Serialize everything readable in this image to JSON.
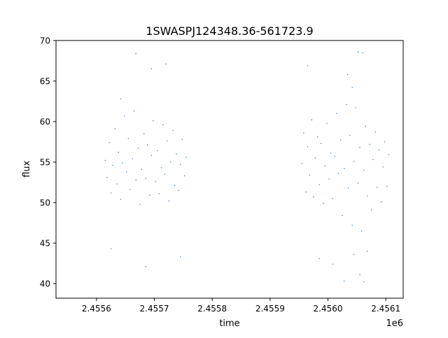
{
  "chart_data": {
    "type": "scatter",
    "title": "1SWASPJ124348.36-561723.9",
    "xlabel": "time",
    "ylabel": "flux",
    "x_offset_label": "1e6",
    "xlim": [
      2.45553,
      2.45613
    ],
    "ylim": [
      38.2,
      70
    ],
    "x_ticks": [
      2.4556,
      2.4557,
      2.4558,
      2.4559,
      2.456,
      2.4561
    ],
    "x_tick_labels": [
      "2.4556",
      "2.4557",
      "2.4558",
      "2.4559",
      "2.4560",
      "2.4561"
    ],
    "y_ticks": [
      40,
      45,
      50,
      55,
      60,
      65,
      70
    ],
    "y_tick_labels": [
      "40",
      "45",
      "50",
      "55",
      "60",
      "65",
      "70"
    ],
    "grid": false,
    "marker_color": "#1f77b4",
    "series": [
      {
        "values": [
          {
            "x": 2.455615,
            "y": 55.2
          },
          {
            "x": 2.455618,
            "y": 53.1
          },
          {
            "x": 2.455622,
            "y": 57.4
          },
          {
            "x": 2.455625,
            "y": 51.2
          },
          {
            "x": 2.455628,
            "y": 54.6
          },
          {
            "x": 2.455632,
            "y": 59.1
          },
          {
            "x": 2.455635,
            "y": 52.3
          },
          {
            "x": 2.455638,
            "y": 56.2
          },
          {
            "x": 2.455642,
            "y": 50.4
          },
          {
            "x": 2.455645,
            "y": 54.9
          },
          {
            "x": 2.455648,
            "y": 60.7
          },
          {
            "x": 2.455652,
            "y": 53.8
          },
          {
            "x": 2.455655,
            "y": 57.9
          },
          {
            "x": 2.455658,
            "y": 51.6
          },
          {
            "x": 2.455662,
            "y": 55.4
          },
          {
            "x": 2.455665,
            "y": 61.3
          },
          {
            "x": 2.455668,
            "y": 52.8
          },
          {
            "x": 2.455672,
            "y": 56.7
          },
          {
            "x": 2.455675,
            "y": 49.8
          },
          {
            "x": 2.455678,
            "y": 54.1
          },
          {
            "x": 2.455682,
            "y": 58.5
          },
          {
            "x": 2.455685,
            "y": 53.0
          },
          {
            "x": 2.455688,
            "y": 57.1
          },
          {
            "x": 2.455692,
            "y": 50.9
          },
          {
            "x": 2.455695,
            "y": 55.8
          },
          {
            "x": 2.455698,
            "y": 60.1
          },
          {
            "x": 2.455702,
            "y": 52.6
          },
          {
            "x": 2.455705,
            "y": 56.4
          },
          {
            "x": 2.455708,
            "y": 51.1
          },
          {
            "x": 2.455712,
            "y": 54.3
          },
          {
            "x": 2.455715,
            "y": 59.6
          },
          {
            "x": 2.455718,
            "y": 53.5
          },
          {
            "x": 2.455722,
            "y": 57.6
          },
          {
            "x": 2.455725,
            "y": 50.2
          },
          {
            "x": 2.455728,
            "y": 55.0
          },
          {
            "x": 2.455732,
            "y": 58.9
          },
          {
            "x": 2.455735,
            "y": 52.1
          },
          {
            "x": 2.455738,
            "y": 56.0
          },
          {
            "x": 2.455742,
            "y": 51.5
          },
          {
            "x": 2.455745,
            "y": 54.7
          },
          {
            "x": 2.455748,
            "y": 57.8
          },
          {
            "x": 2.455752,
            "y": 53.3
          },
          {
            "x": 2.455755,
            "y": 55.6
          },
          {
            "x": 2.455642,
            "y": 62.8
          },
          {
            "x": 2.455668,
            "y": 68.4
          },
          {
            "x": 2.455695,
            "y": 66.5
          },
          {
            "x": 2.45572,
            "y": 67.1
          },
          {
            "x": 2.455625,
            "y": 44.3
          },
          {
            "x": 2.455685,
            "y": 42.1
          },
          {
            "x": 2.455745,
            "y": 43.3
          },
          {
            "x": 2.455955,
            "y": 54.8
          },
          {
            "x": 2.455958,
            "y": 58.6
          },
          {
            "x": 2.455962,
            "y": 51.3
          },
          {
            "x": 2.455965,
            "y": 56.9
          },
          {
            "x": 2.455968,
            "y": 53.4
          },
          {
            "x": 2.455972,
            "y": 60.2
          },
          {
            "x": 2.455975,
            "y": 50.7
          },
          {
            "x": 2.455978,
            "y": 55.5
          },
          {
            "x": 2.455982,
            "y": 58.1
          },
          {
            "x": 2.455985,
            "y": 52.2
          },
          {
            "x": 2.455988,
            "y": 57.3
          },
          {
            "x": 2.455992,
            "y": 49.9
          },
          {
            "x": 2.455995,
            "y": 54.5
          },
          {
            "x": 2.455998,
            "y": 59.8
          },
          {
            "x": 2.456002,
            "y": 52.9
          },
          {
            "x": 2.456005,
            "y": 56.1
          },
          {
            "x": 2.456008,
            "y": 50.5
          },
          {
            "x": 2.456012,
            "y": 55.7
          },
          {
            "x": 2.456015,
            "y": 61.0
          },
          {
            "x": 2.456018,
            "y": 53.6
          },
          {
            "x": 2.456022,
            "y": 57.7
          },
          {
            "x": 2.456025,
            "y": 48.4
          },
          {
            "x": 2.456028,
            "y": 54.2
          },
          {
            "x": 2.456032,
            "y": 62.1
          },
          {
            "x": 2.456035,
            "y": 51.8
          },
          {
            "x": 2.456038,
            "y": 58.3
          },
          {
            "x": 2.456042,
            "y": 47.2
          },
          {
            "x": 2.456045,
            "y": 55.1
          },
          {
            "x": 2.456048,
            "y": 61.7
          },
          {
            "x": 2.456052,
            "y": 52.4
          },
          {
            "x": 2.456055,
            "y": 56.8
          },
          {
            "x": 2.456058,
            "y": 46.5
          },
          {
            "x": 2.456062,
            "y": 54.0
          },
          {
            "x": 2.456065,
            "y": 59.4
          },
          {
            "x": 2.456068,
            "y": 50.8
          },
          {
            "x": 2.456072,
            "y": 57.2
          },
          {
            "x": 2.456075,
            "y": 49.1
          },
          {
            "x": 2.456078,
            "y": 55.3
          },
          {
            "x": 2.456082,
            "y": 58.7
          },
          {
            "x": 2.456085,
            "y": 51.9
          },
          {
            "x": 2.456088,
            "y": 56.5
          },
          {
            "x": 2.456092,
            "y": 50.1
          },
          {
            "x": 2.456095,
            "y": 54.4
          },
          {
            "x": 2.456098,
            "y": 57.5
          },
          {
            "x": 2.456102,
            "y": 52.0
          },
          {
            "x": 2.456105,
            "y": 55.9
          },
          {
            "x": 2.456034,
            "y": 65.8
          },
          {
            "x": 2.456042,
            "y": 64.2
          },
          {
            "x": 2.456052,
            "y": 68.6
          },
          {
            "x": 2.45606,
            "y": 68.5
          },
          {
            "x": 2.455965,
            "y": 66.9
          },
          {
            "x": 2.455985,
            "y": 43.1
          },
          {
            "x": 2.456008,
            "y": 42.4
          },
          {
            "x": 2.456028,
            "y": 40.3
          },
          {
            "x": 2.456045,
            "y": 43.6
          },
          {
            "x": 2.456055,
            "y": 41.1
          },
          {
            "x": 2.456062,
            "y": 40.2
          },
          {
            "x": 2.456068,
            "y": 44.0
          }
        ]
      }
    ]
  }
}
